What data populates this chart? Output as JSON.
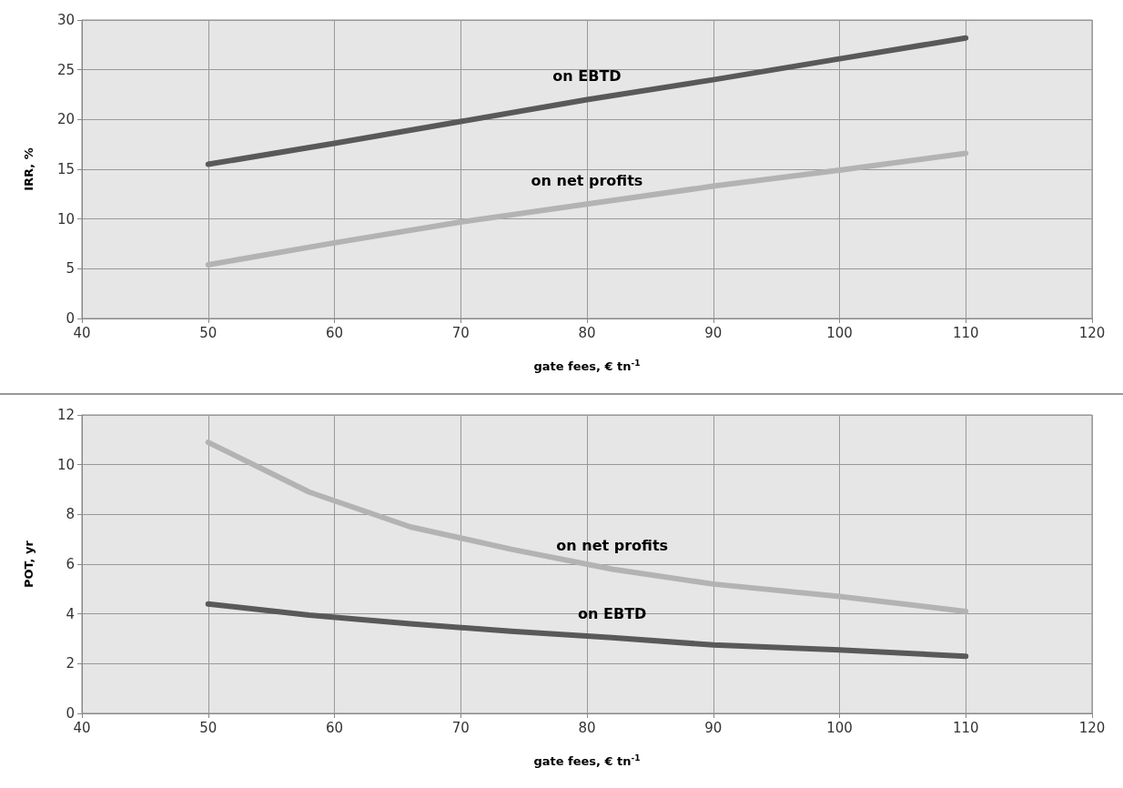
{
  "chart_data": [
    {
      "type": "line",
      "xlabel": "gate fees, € tn$^{-1}$",
      "ylabel": "IRR, %",
      "xlim": [
        40,
        120
      ],
      "xticks": [
        40,
        50,
        60,
        70,
        80,
        90,
        100,
        110,
        120
      ],
      "ylim": [
        0,
        30
      ],
      "yticks": [
        0,
        5,
        10,
        15,
        20,
        25,
        30
      ],
      "grid": true,
      "marker": "none",
      "line_style": "solid",
      "series": [
        {
          "name": "on EBTD",
          "color": "#595959",
          "x": [
            50,
            60,
            70,
            80,
            90,
            100,
            110
          ],
          "values": [
            15.5,
            17.6,
            19.8,
            22.0,
            24.0,
            26.1,
            28.2
          ]
        },
        {
          "name": "on net profits",
          "color": "#b3b3b3",
          "x": [
            50,
            60,
            70,
            80,
            90,
            100,
            110
          ],
          "values": [
            5.4,
            7.6,
            9.7,
            11.5,
            13.3,
            14.9,
            16.6
          ]
        }
      ]
    },
    {
      "type": "line",
      "xlabel": "gate fees, € tn$^{-1}$",
      "ylabel": "POT, yr",
      "xlim": [
        40,
        120
      ],
      "xticks": [
        40,
        50,
        60,
        70,
        80,
        90,
        100,
        110,
        120
      ],
      "ylim": [
        0,
        12
      ],
      "yticks": [
        0,
        2,
        4,
        6,
        8,
        10,
        12
      ],
      "grid": true,
      "marker": "none",
      "line_style": "solid",
      "series": [
        {
          "name": "on net profits",
          "color": "#b3b3b3",
          "x": [
            50,
            58,
            66,
            74,
            82,
            90,
            100,
            110
          ],
          "values": [
            10.9,
            8.9,
            7.5,
            6.6,
            5.8,
            5.2,
            4.7,
            4.1
          ]
        },
        {
          "name": "on EBTD",
          "color": "#595959",
          "x": [
            50,
            58,
            66,
            74,
            82,
            90,
            100,
            110
          ],
          "values": [
            4.4,
            3.95,
            3.6,
            3.3,
            3.05,
            2.75,
            2.55,
            2.3
          ]
        }
      ]
    }
  ]
}
